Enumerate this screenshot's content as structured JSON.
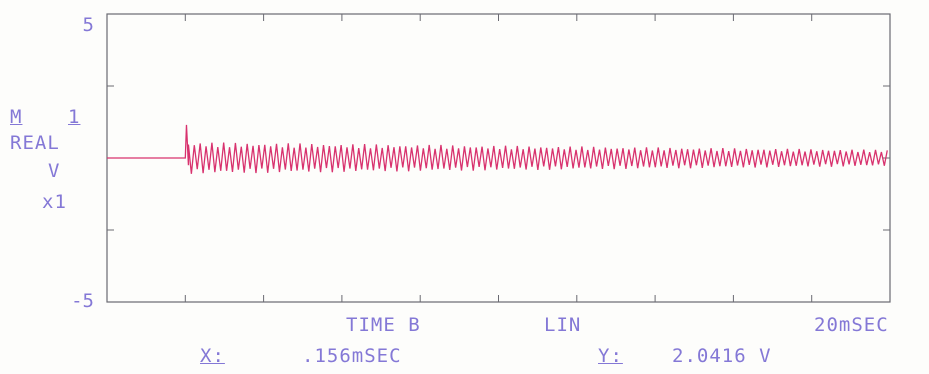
{
  "chart_data": {
    "type": "line",
    "title": "",
    "xlabel": "",
    "ylabel": "",
    "y_ticks": [
      "5",
      "-5"
    ],
    "ylim": [
      -5,
      5
    ],
    "xlim": [
      0,
      20
    ],
    "grid": false,
    "trace_color": "#d8326e",
    "axis_color": "#6a6a72",
    "series": [
      {
        "baseline_until_ms": 2.0,
        "impulse_peak_v": 1.15,
        "initial_amplitude_v": 0.55,
        "final_amplitude_v": 0.28,
        "oscillation_period_ms": 0.15,
        "end_ms": 20
      }
    ]
  },
  "channel": {
    "measurement": "M",
    "measurement_number": "1",
    "mode": "REAL",
    "units": "V",
    "scale": "x1"
  },
  "footer": {
    "time_label": "TIME B",
    "scale_mode": "LIN",
    "span": "20mSEC",
    "x_marker_label": "X:",
    "x_marker_value": ".156mSEC",
    "y_marker_label": "Y:",
    "y_marker_value": "2.0416  V"
  }
}
